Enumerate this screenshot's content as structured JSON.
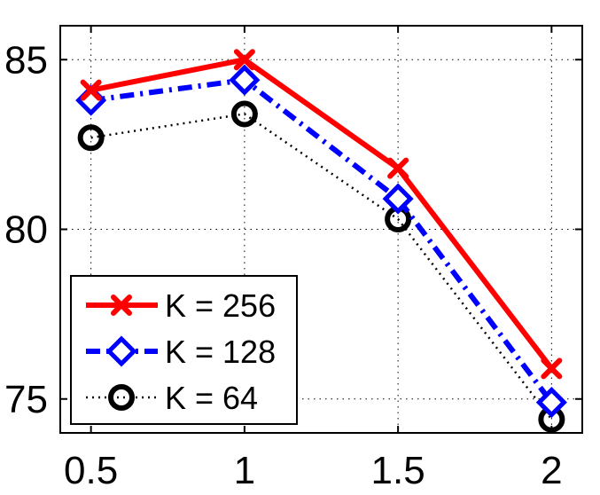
{
  "chart_data": {
    "type": "line",
    "title": "",
    "xlabel": "",
    "ylabel": "",
    "x": [
      0.5,
      1,
      1.5,
      2
    ],
    "xlim": [
      0.4,
      2.1
    ],
    "ylim": [
      74,
      86
    ],
    "xticks": [
      "0.5",
      "1",
      "1.5",
      "2"
    ],
    "yticks": [
      "75",
      "80",
      "85"
    ],
    "grid": true,
    "legend_position": "bottom-left",
    "series": [
      {
        "name": "K = 256",
        "values": [
          84.1,
          85.0,
          81.8,
          75.9
        ],
        "color": "#ff0000",
        "marker": "x",
        "line": "solid"
      },
      {
        "name": "K = 128",
        "values": [
          83.8,
          84.4,
          80.9,
          74.9
        ],
        "color": "#0000ff",
        "marker": "diamond",
        "line": "dashdot"
      },
      {
        "name": "K = 64",
        "values": [
          82.7,
          83.4,
          80.3,
          74.4
        ],
        "color": "#000000",
        "marker": "circle",
        "line": "dotted"
      }
    ]
  }
}
